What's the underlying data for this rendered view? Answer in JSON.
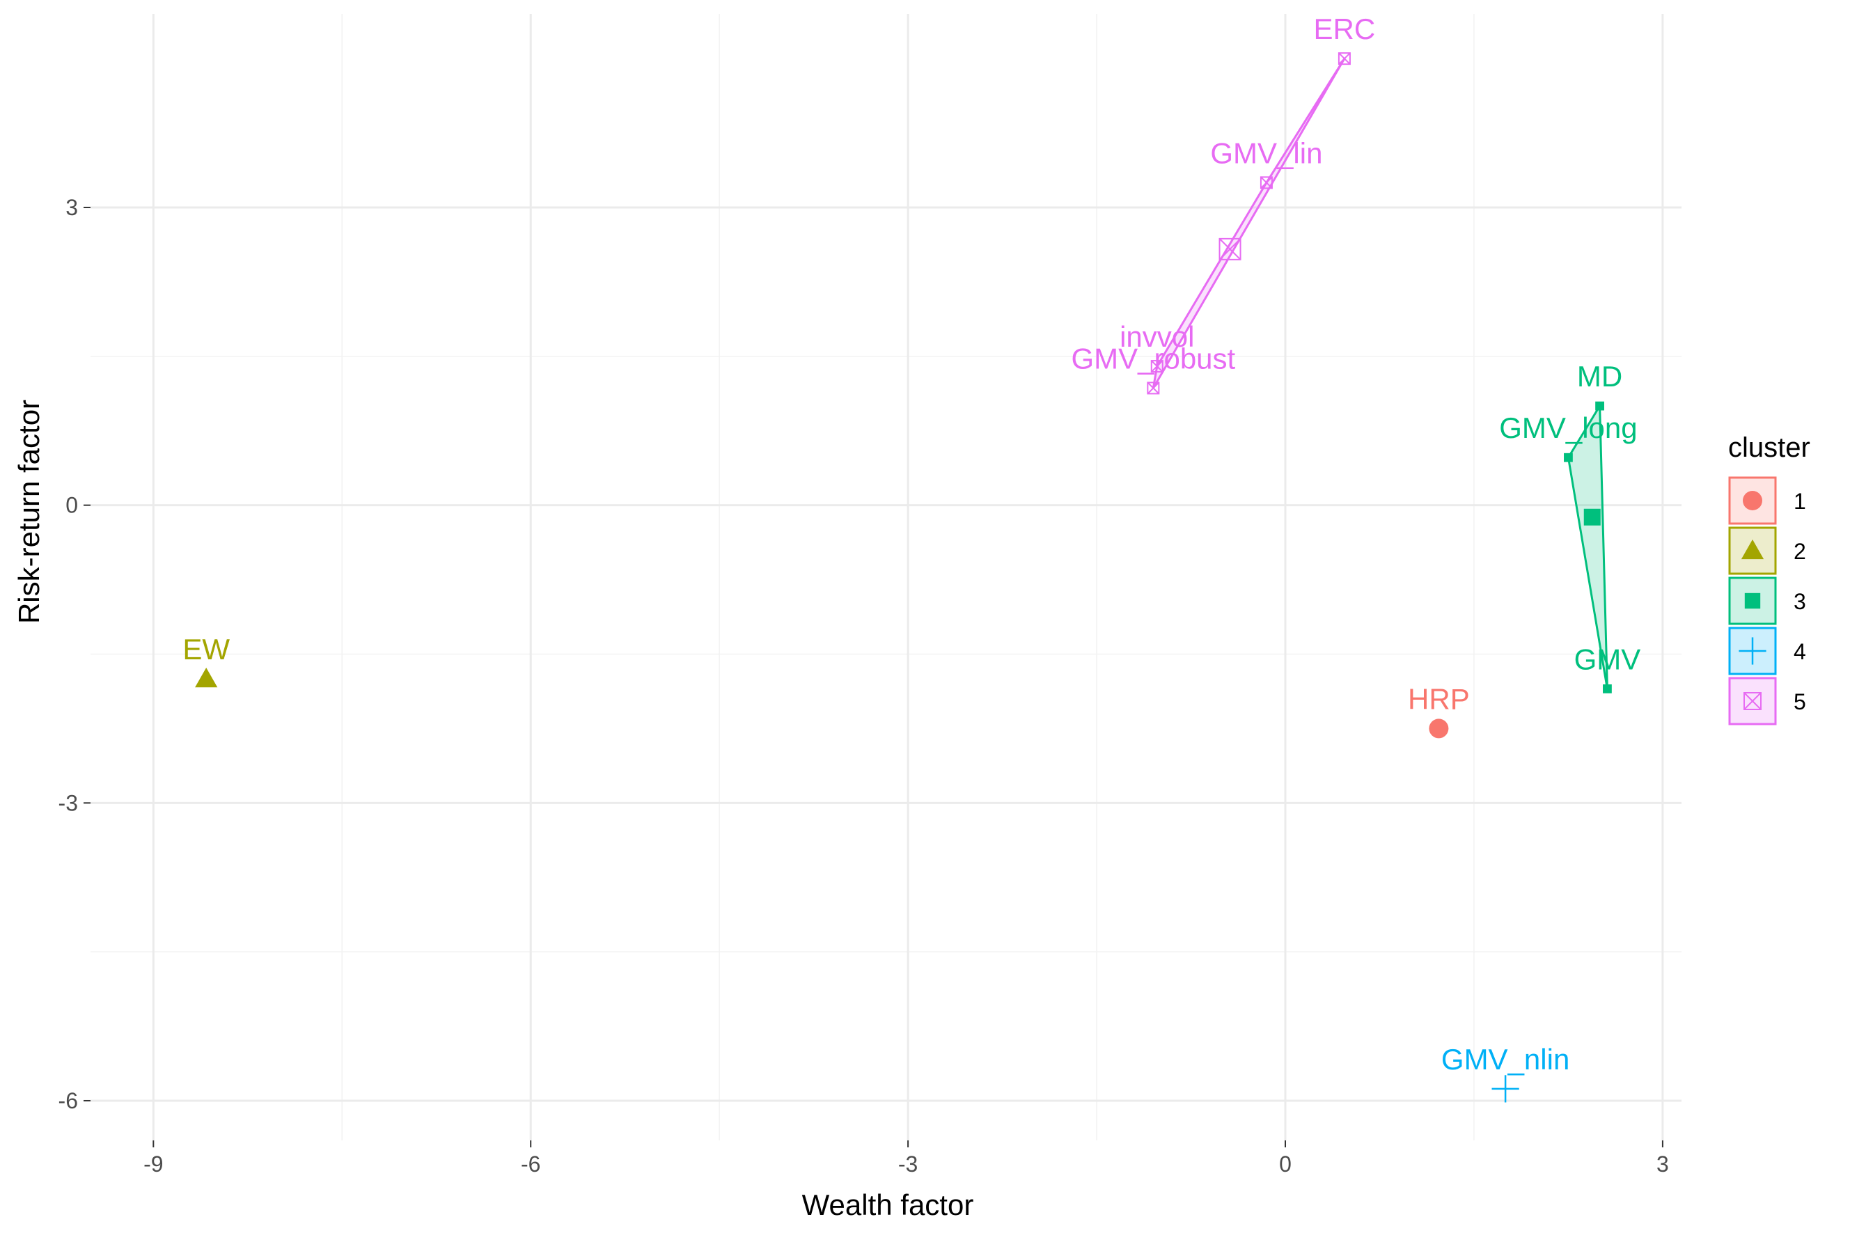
{
  "chart_data": {
    "type": "scatter",
    "xlabel": "Wealth factor",
    "ylabel": "Risk-return factor",
    "xlim": [
      -9.5,
      3.15
    ],
    "ylim": [
      -6.4,
      4.95
    ],
    "x_ticks": [
      -9,
      -6,
      -3,
      0,
      3
    ],
    "y_ticks": [
      -6,
      -3,
      0,
      3
    ],
    "x_tick_labels": [
      "-9",
      "-6",
      "-3",
      "0",
      "3"
    ],
    "y_tick_labels": [
      "-6",
      "-3",
      "0",
      "3"
    ],
    "grid": true,
    "legend": {
      "title": "cluster",
      "position": "right",
      "entries": [
        {
          "label": "1",
          "color": "#F8766D",
          "shape": "circle"
        },
        {
          "label": "2",
          "color": "#A3A500",
          "shape": "triangle"
        },
        {
          "label": "3",
          "color": "#00BF7D",
          "shape": "square"
        },
        {
          "label": "4",
          "color": "#00B0F6",
          "shape": "plus"
        },
        {
          "label": "5",
          "color": "#E76BF3",
          "shape": "boxed-x"
        }
      ]
    },
    "points": [
      {
        "label": "ERC",
        "x": 0.47,
        "y": 4.5,
        "cluster": "5"
      },
      {
        "label": "GMV_lin",
        "x": -0.15,
        "y": 3.25,
        "cluster": "5"
      },
      {
        "label": "invvol",
        "x": -1.02,
        "y": 1.4,
        "cluster": "5"
      },
      {
        "label": "GMV_robust",
        "x": -1.05,
        "y": 1.18,
        "cluster": "5"
      },
      {
        "label": "MD",
        "x": 2.5,
        "y": 1.0,
        "cluster": "3"
      },
      {
        "label": "GMV_long",
        "x": 2.25,
        "y": 0.48,
        "cluster": "3"
      },
      {
        "label": "GMV",
        "x": 2.56,
        "y": -1.85,
        "cluster": "3"
      },
      {
        "label": "HRP",
        "x": 1.22,
        "y": -2.25,
        "cluster": "1"
      },
      {
        "label": "EW",
        "x": -8.58,
        "y": -1.75,
        "cluster": "2"
      },
      {
        "label": "GMV_nlin",
        "x": 1.75,
        "y": -5.88,
        "cluster": "4"
      }
    ],
    "centroids": [
      {
        "x": -0.44,
        "y": 2.58,
        "cluster": "5"
      },
      {
        "x": 2.44,
        "y": -0.12,
        "cluster": "3"
      }
    ],
    "hulls": [
      {
        "cluster": "5",
        "members": [
          "ERC",
          "GMV_lin",
          "invvol",
          "GMV_robust"
        ]
      },
      {
        "cluster": "3",
        "members": [
          "MD",
          "GMV_long",
          "GMV"
        ]
      }
    ]
  }
}
